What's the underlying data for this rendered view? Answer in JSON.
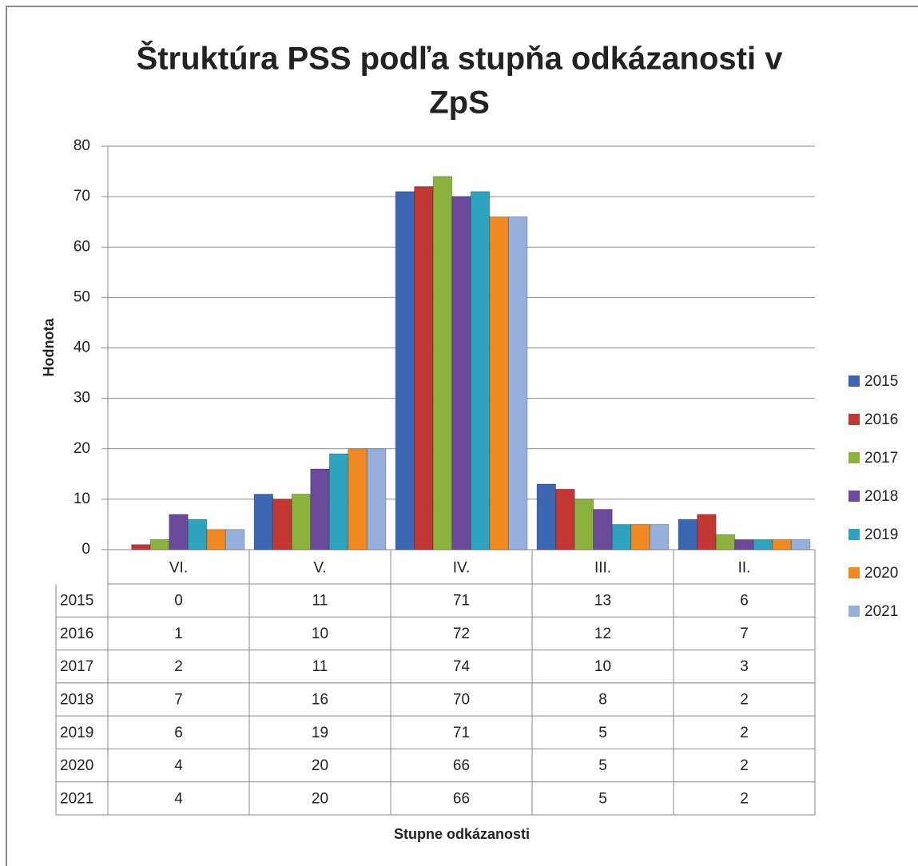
{
  "chart_data": {
    "type": "bar",
    "title": [
      "Štruktúra PSS podľa stupňa odkázanosti v",
      "ZpS"
    ],
    "y_label": "Hodnota",
    "x_label": "Stupne odkázanosti",
    "categories": [
      "VI.",
      "V.",
      "IV.",
      "III.",
      "II."
    ],
    "series": [
      {
        "name": "2015",
        "color": "#3a66b2",
        "values": [
          0,
          11,
          71,
          13,
          6
        ]
      },
      {
        "name": "2016",
        "color": "#c23633",
        "values": [
          1,
          10,
          72,
          12,
          7
        ]
      },
      {
        "name": "2017",
        "color": "#8cb23e",
        "values": [
          2,
          11,
          74,
          10,
          3
        ]
      },
      {
        "name": "2018",
        "color": "#6c4a9b",
        "values": [
          7,
          16,
          70,
          8,
          2
        ]
      },
      {
        "name": "2019",
        "color": "#2ea3bf",
        "values": [
          6,
          19,
          71,
          5,
          2
        ]
      },
      {
        "name": "2020",
        "color": "#f0891f",
        "values": [
          4,
          20,
          66,
          5,
          2
        ]
      },
      {
        "name": "2021",
        "color": "#96b0dc",
        "values": [
          4,
          20,
          66,
          5,
          2
        ]
      }
    ],
    "ylim": [
      0,
      80
    ],
    "yticks": [
      0,
      10,
      20,
      30,
      40,
      50,
      60,
      70,
      80
    ],
    "grid": true,
    "legend": "right",
    "data_table": true
  }
}
